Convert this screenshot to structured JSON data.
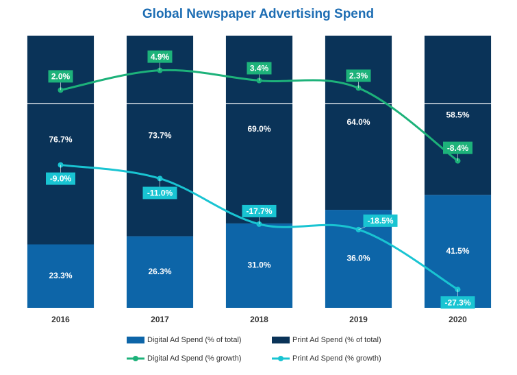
{
  "chart_data": {
    "type": "bar",
    "stacked": true,
    "title": "Global Newspaper Advertising Spend",
    "categories": [
      "2016",
      "2017",
      "2018",
      "2019",
      "2020"
    ],
    "ylim": [
      0,
      100
    ],
    "y2lim": [
      -30,
      10
    ],
    "legend": "bottom",
    "series": [
      {
        "name": "Digital Ad Spend (% of total)",
        "type": "bar",
        "color": "#0d65a8",
        "values": [
          23.3,
          26.3,
          31.0,
          36.0,
          41.5
        ],
        "value_labels": [
          "23.3%",
          "26.3%",
          "31.0%",
          "36.0%",
          "41.5%"
        ]
      },
      {
        "name": "Print Ad Spend (% of total)",
        "type": "bar",
        "color": "#0a3358",
        "values": [
          76.7,
          73.7,
          69.0,
          64.0,
          58.5
        ],
        "value_labels": [
          "76.7%",
          "73.7%",
          "69.0%",
          "64.0%",
          "58.5%"
        ]
      },
      {
        "name": "Digital Ad Spend (% growth)",
        "type": "line",
        "axis": "y2",
        "color": "#1db27a",
        "values": [
          2.0,
          4.9,
          3.4,
          2.3,
          -8.4
        ],
        "value_labels": [
          "2.0%",
          "4.9%",
          "3.4%",
          "2.3%",
          "-8.4%"
        ]
      },
      {
        "name": "Print Ad Spend (% growth)",
        "type": "line",
        "axis": "y2",
        "color": "#19c4d2",
        "values": [
          -9.0,
          -11.0,
          -17.7,
          -18.5,
          -27.3
        ],
        "value_labels": [
          "-9.0%",
          "-11.0%",
          "-17.7%",
          "-18.5%",
          "-27.3%"
        ]
      }
    ]
  }
}
